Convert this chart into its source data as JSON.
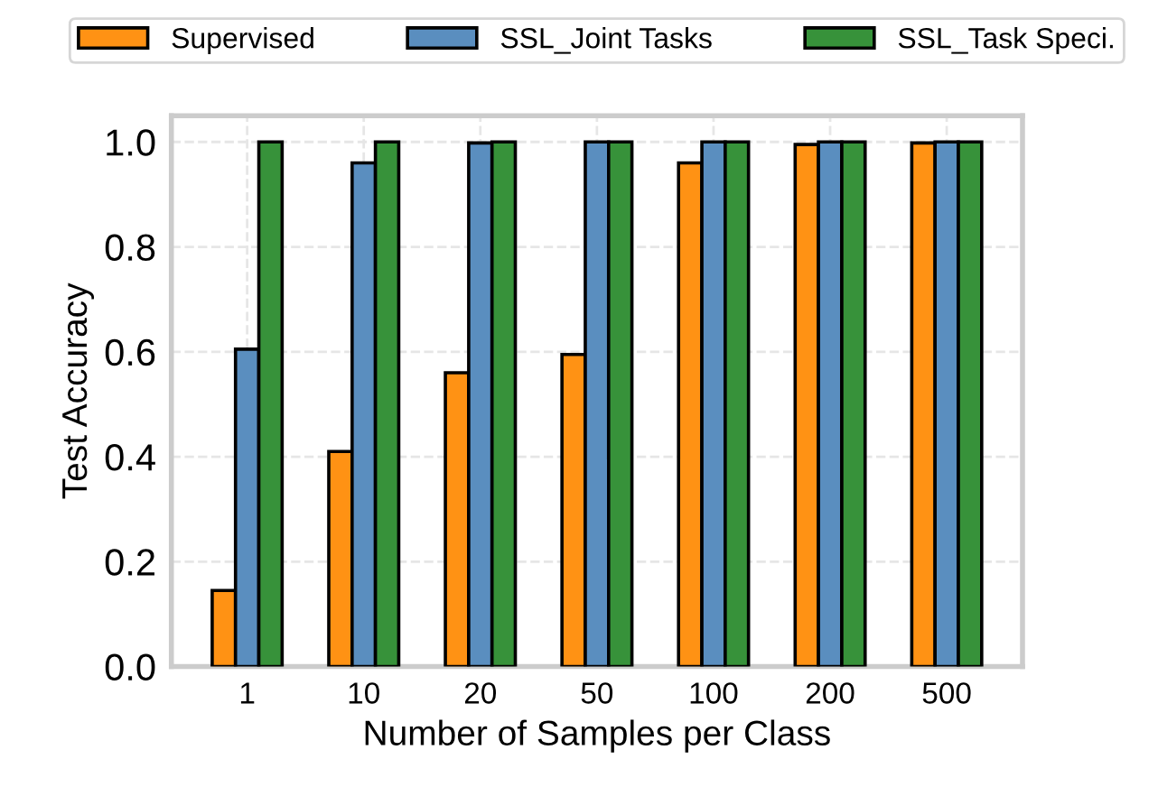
{
  "chart_data": {
    "type": "bar",
    "xlabel": "Number of Samples per Class",
    "ylabel": "Test Accuracy",
    "categories": [
      "1",
      "10",
      "20",
      "50",
      "100",
      "200",
      "500"
    ],
    "series": [
      {
        "name": "Supervised",
        "color": "#ff9214",
        "values": [
          0.145,
          0.41,
          0.56,
          0.595,
          0.96,
          0.995,
          0.998
        ]
      },
      {
        "name": "SSL_Joint Tasks",
        "color": "#5a8ebf",
        "values": [
          0.605,
          0.96,
          0.998,
          1.0,
          1.0,
          1.0,
          1.0
        ]
      },
      {
        "name": "SSL_Task Speci.",
        "color": "#37923a",
        "values": [
          1.0,
          1.0,
          1.0,
          1.0,
          1.0,
          1.0,
          1.0
        ]
      }
    ],
    "ylim": [
      0,
      1.05
    ],
    "yticks": [
      {
        "value": 0,
        "label": "0.0"
      },
      0.2,
      0.4,
      0.6,
      0.8,
      {
        "value": 1,
        "label": "1.0"
      }
    ],
    "grid": true,
    "legend": "top"
  }
}
